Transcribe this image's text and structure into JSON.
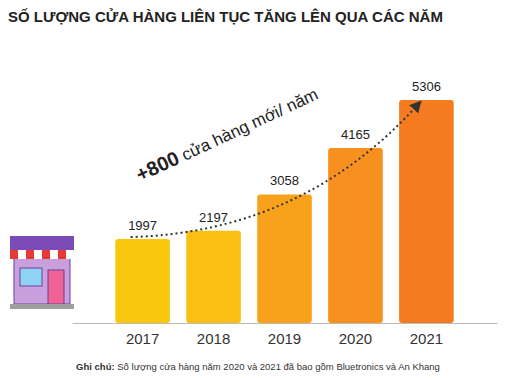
{
  "chart_data": {
    "type": "bar",
    "title": "SỐ LƯỢNG CỬA HÀNG LIÊN TỤC TĂNG LÊN QUA CÁC NĂM",
    "categories": [
      "2017",
      "2018",
      "2019",
      "2020",
      "2021"
    ],
    "values": [
      1997,
      2197,
      3058,
      4165,
      5306
    ],
    "colors": [
      "#f9c80e",
      "#f9bf12",
      "#f8a21c",
      "#f7901f",
      "#f47b20"
    ],
    "data_labels": true,
    "tick_labels": "x",
    "annotations": [
      {
        "text": "+800 cửa hàng mới/ năm"
      }
    ],
    "note": "Ghi chú: Số lượng cửa hàng năm 2020 và 2021 đã bao gồm Bluetronics và An Khang"
  }
}
